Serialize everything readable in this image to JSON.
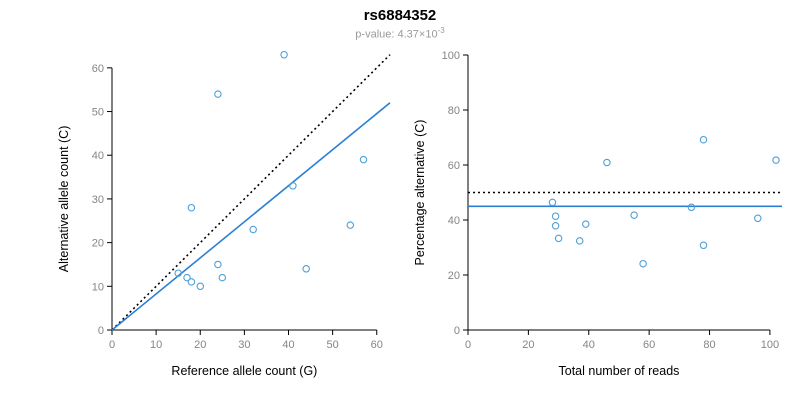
{
  "title": "rs6884352",
  "subtitle": {
    "base": "p-value: 4.37×10",
    "exponent": "-3"
  },
  "colors": {
    "accent_point": "#4f9fd8",
    "accent_line": "#2a7fd4",
    "identity_line": "#000000",
    "axis": "#000000",
    "tick_label": "#858585",
    "axis_title": "#000000",
    "subtitle": "#9a9a9a",
    "background": "#ffffff"
  },
  "chart_data": [
    {
      "type": "scatter",
      "name": "allele-counts",
      "title": "rs6884352",
      "subtitle": "p-value: 4.37x10^-3",
      "xlabel": "Reference allele count (G)",
      "ylabel": "Alternative allele count (C)",
      "xlim": [
        0,
        63
      ],
      "ylim": [
        0,
        65
      ],
      "xticks": [
        0,
        10,
        20,
        30,
        40,
        50,
        60
      ],
      "yticks": [
        0,
        10,
        20,
        30,
        40,
        50,
        60
      ],
      "grid": false,
      "legend": "none",
      "marker": "open-circle",
      "points": [
        [
          18,
          28
        ],
        [
          15,
          13
        ],
        [
          17,
          12
        ],
        [
          18,
          11
        ],
        [
          20,
          10
        ],
        [
          24,
          15
        ],
        [
          25,
          12
        ],
        [
          32,
          23
        ],
        [
          24,
          54
        ],
        [
          39,
          63
        ],
        [
          41,
          33
        ],
        [
          44,
          14
        ],
        [
          54,
          24
        ],
        [
          57,
          39
        ]
      ],
      "lines": [
        {
          "name": "identity-line",
          "style": "dotted",
          "role": "y-equals-x",
          "x1": 0,
          "y1": 0,
          "x2": 63,
          "y2": 63
        },
        {
          "name": "fit-line",
          "style": "solid",
          "role": "regression",
          "x1": 0,
          "y1": 0,
          "x2": 63,
          "y2": 52
        }
      ]
    },
    {
      "type": "scatter",
      "name": "percentage-alternative",
      "xlabel": "Total number of reads",
      "ylabel": "Percentage alternative (C)",
      "xlim": [
        0,
        104
      ],
      "ylim": [
        0,
        100
      ],
      "xticks": [
        0,
        20,
        40,
        60,
        80,
        100
      ],
      "yticks": [
        0,
        20,
        40,
        60,
        80,
        100
      ],
      "grid": false,
      "legend": "none",
      "marker": "open-circle",
      "points": [
        [
          46,
          60.9
        ],
        [
          28,
          46.4
        ],
        [
          29,
          41.4
        ],
        [
          29,
          37.9
        ],
        [
          30,
          33.3
        ],
        [
          39,
          38.5
        ],
        [
          37,
          32.4
        ],
        [
          55,
          41.8
        ],
        [
          78,
          69.2
        ],
        [
          102,
          61.8
        ],
        [
          74,
          44.6
        ],
        [
          58,
          24.1
        ],
        [
          78,
          30.8
        ],
        [
          96,
          40.6
        ]
      ],
      "lines": [
        {
          "name": "expected-50pct-line",
          "style": "dotted",
          "role": "expected-ratio",
          "x1": 0,
          "y1": 50,
          "x2": 104,
          "y2": 50
        },
        {
          "name": "mean-pct-line",
          "style": "solid",
          "role": "mean",
          "x1": 0,
          "y1": 45,
          "x2": 104,
          "y2": 45
        }
      ]
    }
  ]
}
